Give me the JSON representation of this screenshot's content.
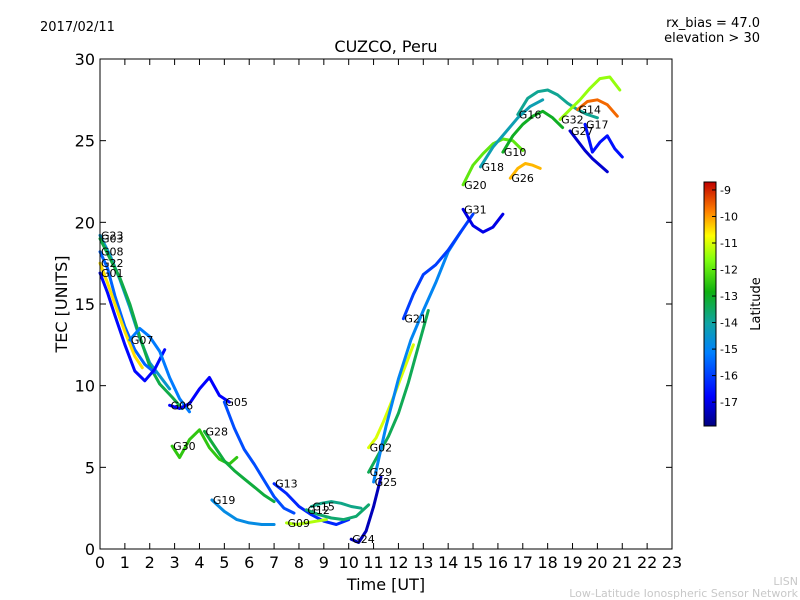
{
  "header": {
    "date": "2017/02/11",
    "bias": "rx_bias = 47.0",
    "elevation": "elevation > 30"
  },
  "footer": {
    "line1": "LISN",
    "line2": "Low-Latitude Ionospheric Sensor Network"
  },
  "chart_data": {
    "type": "line",
    "title": "CUZCO, Peru",
    "xlabel": "Time [UT]",
    "ylabel": "TEC [UNITS]",
    "xlim": [
      0,
      23
    ],
    "ylim": [
      0,
      30
    ],
    "x_ticks": [
      "0",
      "1",
      "2",
      "3",
      "4",
      "5",
      "6",
      "7",
      "8",
      "9",
      "10",
      "11",
      "12",
      "13",
      "14",
      "15",
      "16",
      "17",
      "18",
      "19",
      "20",
      "21",
      "22",
      "23"
    ],
    "y_ticks": [
      "0",
      "5",
      "10",
      "15",
      "20",
      "25",
      "30"
    ],
    "grid": false,
    "colorbar": {
      "label": "Latitude",
      "min": -17.9,
      "max": -8.7,
      "ticks": [
        "-9",
        "-10",
        "-11",
        "-12",
        "-13",
        "-14",
        "-15",
        "-16",
        "-17"
      ],
      "tick_values": [
        -9,
        -10,
        -11,
        -12,
        -13,
        -14,
        -15,
        -16,
        -17
      ]
    },
    "series": [
      {
        "name": "G23",
        "lat": -14.5,
        "x": [
          0.0,
          0.4,
          0.8,
          1.2,
          1.6,
          2.0,
          2.4,
          2.8
        ],
        "y": [
          19.2,
          18.0,
          16.5,
          14.8,
          12.9,
          11.4,
          10.6,
          9.8
        ]
      },
      {
        "name": "G03",
        "lat": -13.3,
        "x": [
          0.0,
          0.4,
          0.8,
          1.2,
          1.6,
          2.0,
          2.4,
          2.9,
          3.3
        ],
        "y": [
          19.0,
          17.8,
          16.6,
          15.0,
          13.0,
          11.2,
          10.1,
          9.3,
          8.6
        ]
      },
      {
        "name": "G08",
        "lat": -15.5,
        "x": [
          0.0,
          0.3,
          0.6,
          1.0,
          1.4,
          1.8,
          2.2
        ],
        "y": [
          18.2,
          17.2,
          15.5,
          13.6,
          12.2,
          11.3,
          10.8
        ]
      },
      {
        "name": "G22",
        "lat": -10.5,
        "x": [
          0.0,
          0.3,
          0.6,
          1.0,
          1.4,
          1.7
        ],
        "y": [
          17.5,
          16.3,
          15.0,
          13.3,
          11.8,
          11.1
        ]
      },
      {
        "name": "G01",
        "lat": -16.7,
        "x": [
          0.0,
          0.3,
          0.6,
          1.0,
          1.4,
          1.8,
          2.2,
          2.6
        ],
        "y": [
          16.9,
          15.7,
          14.3,
          12.5,
          10.9,
          10.3,
          11.0,
          12.2
        ]
      },
      {
        "name": "G07",
        "lat": -15.2,
        "x": [
          1.2,
          1.6,
          2.0,
          2.4,
          2.8,
          3.2,
          3.6
        ],
        "y": [
          12.8,
          13.5,
          13.0,
          12.1,
          10.5,
          9.2,
          8.4
        ]
      },
      {
        "name": "G06",
        "lat": -16.8,
        "x": [
          2.8,
          3.2,
          3.6,
          4.0,
          4.4,
          4.8,
          5.2
        ],
        "y": [
          8.8,
          8.6,
          8.9,
          9.8,
          10.5,
          9.4,
          9.0
        ]
      },
      {
        "name": "G30",
        "lat": -12.5,
        "x": [
          2.9,
          3.2,
          3.6,
          4.0,
          4.4,
          4.8,
          5.2,
          5.5
        ],
        "y": [
          6.3,
          5.6,
          6.7,
          7.3,
          6.2,
          5.5,
          5.2,
          5.6
        ]
      },
      {
        "name": "G28",
        "lat": -13.2,
        "x": [
          4.2,
          4.6,
          5.0,
          5.4,
          5.8,
          6.2,
          6.6,
          7.0
        ],
        "y": [
          7.2,
          6.3,
          5.4,
          4.8,
          4.3,
          3.8,
          3.3,
          2.9
        ]
      },
      {
        "name": "G05",
        "lat": -15.8,
        "x": [
          5.0,
          5.4,
          5.8,
          6.2,
          6.6,
          7.0,
          7.4,
          7.8
        ],
        "y": [
          9.0,
          7.4,
          6.1,
          5.2,
          4.2,
          3.2,
          2.5,
          2.2
        ]
      },
      {
        "name": "G19",
        "lat": -14.8,
        "x": [
          4.5,
          5.0,
          5.5,
          6.0,
          6.5,
          7.0
        ],
        "y": [
          3.0,
          2.3,
          1.8,
          1.6,
          1.5,
          1.5
        ]
      },
      {
        "name": "G13",
        "lat": -16.3,
        "x": [
          7.0,
          7.5,
          8.0,
          8.5,
          9.0,
          9.5,
          10.0
        ],
        "y": [
          4.0,
          3.4,
          2.6,
          2.1,
          1.7,
          1.5,
          1.8
        ]
      },
      {
        "name": "G09",
        "lat": -11.3,
        "x": [
          7.5,
          7.9,
          8.3,
          8.7,
          9.1
        ],
        "y": [
          1.6,
          1.5,
          1.6,
          1.7,
          1.8
        ]
      },
      {
        "name": "G15",
        "lat": -13.8,
        "x": [
          8.5,
          8.9,
          9.3,
          9.7,
          10.1,
          10.5
        ],
        "y": [
          2.6,
          2.8,
          2.9,
          2.8,
          2.6,
          2.5
        ]
      },
      {
        "name": "G12",
        "lat": -13.6,
        "x": [
          8.3,
          8.8,
          9.3,
          9.8,
          10.3,
          10.8
        ],
        "y": [
          2.4,
          2.1,
          1.9,
          1.8,
          2.0,
          2.7
        ]
      },
      {
        "name": "G24",
        "lat": -17.4,
        "x": [
          10.1,
          10.4,
          10.7,
          11.0,
          11.3
        ],
        "y": [
          0.6,
          0.4,
          1.1,
          2.6,
          4.4
        ]
      },
      {
        "name": "G02",
        "lat": -11.0,
        "x": [
          10.8,
          11.1,
          11.4,
          11.8,
          12.2,
          12.6
        ],
        "y": [
          6.2,
          6.8,
          7.8,
          9.3,
          10.9,
          12.5
        ]
      },
      {
        "name": "G29",
        "lat": -13.4,
        "x": [
          10.8,
          11.2,
          11.6,
          12.0,
          12.4,
          12.8,
          13.2
        ],
        "y": [
          4.7,
          5.8,
          6.9,
          8.3,
          10.2,
          12.4,
          14.6
        ]
      },
      {
        "name": "G25",
        "lat": -15.0,
        "x": [
          11.0,
          11.5,
          12.0,
          12.5,
          13.0,
          13.5,
          14.0,
          14.5
        ],
        "y": [
          4.1,
          7.5,
          10.4,
          12.8,
          14.6,
          16.3,
          18.2,
          19.4
        ]
      },
      {
        "name": "G21",
        "lat": -16.0,
        "x": [
          12.2,
          12.6,
          13.0,
          13.5,
          14.0,
          14.5,
          15.0
        ],
        "y": [
          14.1,
          15.6,
          16.8,
          17.4,
          18.3,
          19.4,
          20.5
        ]
      },
      {
        "name": "G31",
        "lat": -17.0,
        "x": [
          14.6,
          15.0,
          15.4,
          15.8,
          16.2
        ],
        "y": [
          20.8,
          19.8,
          19.4,
          19.7,
          20.5
        ]
      },
      {
        "name": "G20",
        "lat": -12.0,
        "x": [
          14.6,
          15.0,
          15.4,
          15.8,
          16.2,
          16.6,
          17.0
        ],
        "y": [
          22.3,
          23.5,
          24.2,
          24.8,
          25.1,
          25.0,
          24.4
        ]
      },
      {
        "name": "G18",
        "lat": -14.2,
        "x": [
          15.3,
          15.8,
          16.3,
          16.8,
          17.3,
          17.8
        ],
        "y": [
          23.4,
          24.6,
          25.5,
          26.4,
          27.1,
          27.5
        ]
      },
      {
        "name": "G26",
        "lat": -10.2,
        "x": [
          16.5,
          16.8,
          17.1,
          17.4,
          17.7
        ],
        "y": [
          22.7,
          23.3,
          23.6,
          23.5,
          23.3
        ]
      },
      {
        "name": "G10",
        "lat": -13.0,
        "x": [
          16.2,
          16.6,
          17.0,
          17.4,
          17.8,
          18.2,
          18.6
        ],
        "y": [
          24.3,
          25.3,
          26.0,
          26.5,
          26.8,
          26.4,
          25.8
        ]
      },
      {
        "name": "G16",
        "lat": -13.9,
        "x": [
          16.8,
          17.2,
          17.6,
          18.0,
          18.4,
          18.8,
          19.2,
          19.6,
          20.0
        ],
        "y": [
          26.6,
          27.6,
          28.0,
          28.1,
          27.8,
          27.3,
          26.9,
          26.6,
          26.4
        ]
      },
      {
        "name": "G32",
        "lat": -11.5,
        "x": [
          18.5,
          18.9,
          19.3,
          19.7,
          20.1,
          20.5,
          20.9
        ],
        "y": [
          26.3,
          26.9,
          27.5,
          28.2,
          28.8,
          28.9,
          28.1
        ]
      },
      {
        "name": "G14",
        "lat": -9.6,
        "x": [
          19.2,
          19.6,
          20.0,
          20.4,
          20.8
        ],
        "y": [
          26.9,
          27.4,
          27.5,
          27.2,
          26.5
        ]
      },
      {
        "name": "G17",
        "lat": -16.6,
        "x": [
          19.5,
          19.8,
          20.1,
          20.4,
          20.7,
          21.0
        ],
        "y": [
          26.0,
          24.3,
          24.9,
          25.3,
          24.5,
          24.0
        ]
      },
      {
        "name": "G27",
        "lat": -17.2,
        "x": [
          18.9,
          19.2,
          19.5,
          19.8,
          20.1,
          20.4
        ],
        "y": [
          25.6,
          25.0,
          24.4,
          23.9,
          23.5,
          23.1
        ]
      }
    ]
  }
}
